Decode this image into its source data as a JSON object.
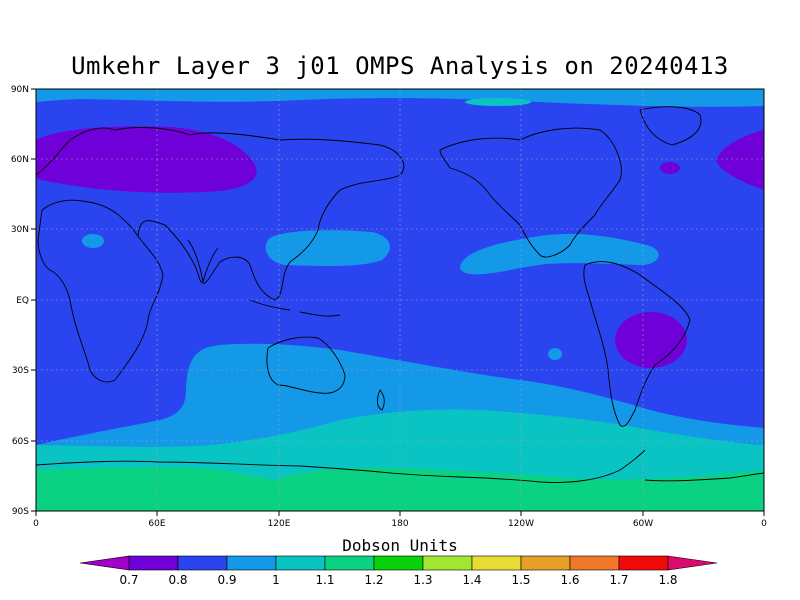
{
  "title": "Umkehr Layer 3 j01 OMPS Analysis on 20240413",
  "colorbar": {
    "title": "Dobson Units",
    "labels": [
      "0.7",
      "0.8",
      "0.9",
      "1",
      "1.1",
      "1.2",
      "1.3",
      "1.4",
      "1.5",
      "1.6",
      "1.7",
      "1.8"
    ],
    "colors": [
      "#a000c8",
      "#7000d8",
      "#2a44f0",
      "#1499e8",
      "#0ac4c4",
      "#0ad282",
      "#0ad20a",
      "#a0e632",
      "#e6dc32",
      "#e6a028",
      "#f07828",
      "#f00a0a",
      "#dc0a6e"
    ]
  },
  "axes": {
    "y_labels": [
      "90N",
      "60N",
      "30N",
      "EQ",
      "30S",
      "60S",
      "90S"
    ],
    "x_labels": [
      "0",
      "60E",
      "120E",
      "180",
      "120W",
      "60W",
      "0"
    ]
  },
  "map_fields": {
    "background_value": "0.9",
    "colors": {
      "purple": "#7000d8",
      "blue": "#2a44f0",
      "lightblue": "#1499e8",
      "cyan": "#0ac4c4",
      "green": "#0ad282"
    }
  }
}
